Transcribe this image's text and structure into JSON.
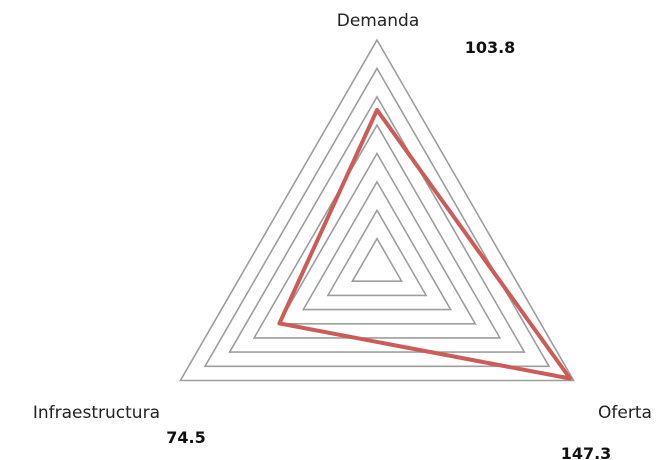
{
  "chart_data": {
    "type": "radar",
    "categories": [
      "Demanda",
      "Oferta",
      "Infraestructura"
    ],
    "series": [
      {
        "values": [
          103.8,
          147.3,
          74.5
        ]
      }
    ],
    "value_labels": [
      "103.8",
      "147.3",
      "74.5"
    ],
    "rlim": [
      0,
      150
    ],
    "grid_levels": 8,
    "grid": true,
    "legend": false,
    "colors": {
      "series": "#cd5c58",
      "grid": "#9e9e9e"
    }
  }
}
